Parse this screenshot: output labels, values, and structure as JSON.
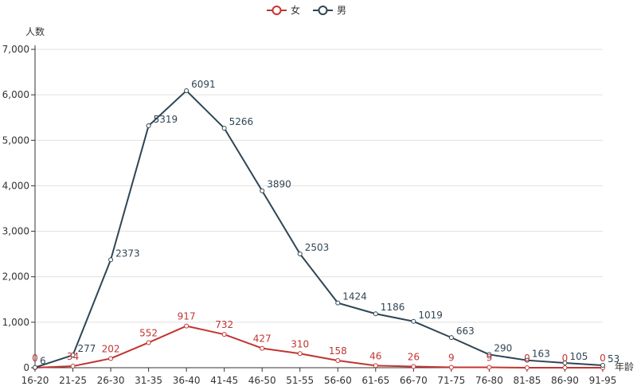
{
  "chart_data": {
    "type": "line",
    "ylabel": "人数",
    "xlabel": "年龄",
    "ylim": [
      0,
      7000
    ],
    "yticks": [
      0,
      1000,
      2000,
      3000,
      4000,
      5000,
      6000,
      7000
    ],
    "ytick_labels": [
      "0",
      "1,000",
      "2,000",
      "3,000",
      "4,000",
      "5,000",
      "6,000",
      "7,000"
    ],
    "legend_position": "top-center",
    "grid": true,
    "categories": [
      "16-20",
      "21-25",
      "26-30",
      "31-35",
      "36-40",
      "41-45",
      "46-50",
      "51-55",
      "56-60",
      "61-65",
      "66-70",
      "71-75",
      "76-80",
      "81-85",
      "86-90",
      "91-95"
    ],
    "series": [
      {
        "name": "女",
        "color": "#c23531",
        "values": [
          0,
          34,
          202,
          552,
          917,
          732,
          427,
          310,
          158,
          46,
          26,
          9,
          9,
          0,
          0,
          0
        ]
      },
      {
        "name": "男",
        "color": "#2f4554",
        "values": [
          6,
          277,
          2373,
          5319,
          6091,
          5266,
          3890,
          2503,
          1424,
          1186,
          1019,
          663,
          290,
          163,
          105,
          53
        ]
      }
    ]
  }
}
